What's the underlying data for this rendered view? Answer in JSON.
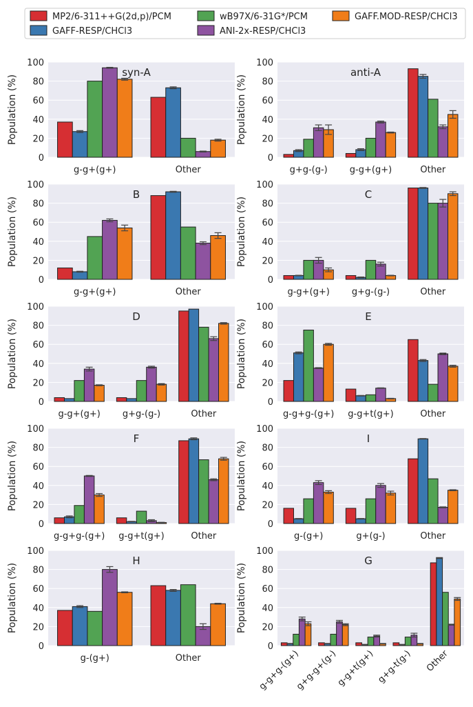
{
  "colors": {
    "mp2": "#d62f33",
    "gaff_resp": "#3a78b0",
    "wb97x": "#52a353",
    "ani2x": "#8e53a0",
    "gaff_mod": "#f07d19",
    "panel_bg": "#eaeaf2",
    "grid": "#ffffff"
  },
  "legend": {
    "entries": [
      "MP2/6-311++G(2d,p)/PCM",
      "GAFF-RESP/CHCl3",
      "wB97X/6-31G*/PCM",
      "ANI-2x-RESP/CHCl3",
      "GAFF.MOD-RESP/CHCl3"
    ]
  },
  "chart_data": [
    {
      "type": "bar",
      "title": "syn-A",
      "ylabel": "Population (%)",
      "ylim": [
        0,
        100
      ],
      "yticks": [
        0,
        20,
        40,
        60,
        80,
        100
      ],
      "categories": [
        "g-g+(g+)",
        "Other"
      ],
      "series": [
        {
          "name": "MP2/6-311++G(2d,p)/PCM",
          "values": [
            37,
            63
          ]
        },
        {
          "name": "GAFF-RESP/CHCl3",
          "values": [
            27,
            73
          ],
          "errors": [
            1,
            1
          ]
        },
        {
          "name": "wB97X/6-31G*/PCM",
          "values": [
            80,
            20
          ]
        },
        {
          "name": "ANI-2x-RESP/CHCl3",
          "values": [
            94,
            6
          ],
          "errors": [
            0.5,
            0.5
          ]
        },
        {
          "name": "GAFF.MOD-RESP/CHCl3",
          "values": [
            82,
            18
          ],
          "errors": [
            1,
            1
          ]
        }
      ]
    },
    {
      "type": "bar",
      "title": "anti-A",
      "ylabel": "Population (%)",
      "ylim": [
        0,
        100
      ],
      "yticks": [
        0,
        20,
        40,
        60,
        80,
        100
      ],
      "categories": [
        "g+g-(g-)",
        "g-g+(g+)",
        "Other"
      ],
      "series": [
        {
          "name": "MP2/6-311++G(2d,p)/PCM",
          "values": [
            3,
            4,
            93
          ]
        },
        {
          "name": "GAFF-RESP/CHCl3",
          "values": [
            7,
            8,
            85
          ],
          "errors": [
            1,
            1,
            2
          ]
        },
        {
          "name": "wB97X/6-31G*/PCM",
          "values": [
            19,
            20,
            61
          ]
        },
        {
          "name": "ANI-2x-RESP/CHCl3",
          "values": [
            31,
            37,
            32
          ],
          "errors": [
            3,
            1,
            2
          ]
        },
        {
          "name": "GAFF.MOD-RESP/CHCl3",
          "values": [
            29,
            26,
            45
          ],
          "errors": [
            5,
            0.5,
            4
          ]
        }
      ]
    },
    {
      "type": "bar",
      "title": "B",
      "ylabel": "Population (%)",
      "ylim": [
        0,
        100
      ],
      "yticks": [
        0,
        20,
        40,
        60,
        80,
        100
      ],
      "categories": [
        "g-g+(g+)",
        "Other"
      ],
      "series": [
        {
          "name": "MP2/6-311++G(2d,p)/PCM",
          "values": [
            12,
            88
          ]
        },
        {
          "name": "GAFF-RESP/CHCl3",
          "values": [
            8,
            92
          ],
          "errors": [
            0.5,
            0.5
          ]
        },
        {
          "name": "wB97X/6-31G*/PCM",
          "values": [
            45,
            55
          ]
        },
        {
          "name": "ANI-2x-RESP/CHCl3",
          "values": [
            62,
            38
          ],
          "errors": [
            1.5,
            1.5
          ]
        },
        {
          "name": "GAFF.MOD-RESP/CHCl3",
          "values": [
            54,
            46
          ],
          "errors": [
            3,
            3
          ]
        }
      ]
    },
    {
      "type": "bar",
      "title": "C",
      "ylabel": "Population (%)",
      "ylim": [
        0,
        100
      ],
      "yticks": [
        0,
        20,
        40,
        60,
        80,
        100
      ],
      "categories": [
        "g-g+(g+)",
        "g+g-(g-)",
        "Other"
      ],
      "series": [
        {
          "name": "MP2/6-311++G(2d,p)/PCM",
          "values": [
            4,
            4,
            96
          ]
        },
        {
          "name": "GAFF-RESP/CHCl3",
          "values": [
            4,
            2,
            96
          ],
          "errors": [
            0.3,
            0.5,
            0.5
          ]
        },
        {
          "name": "wB97X/6-31G*/PCM",
          "values": [
            20,
            20,
            80
          ]
        },
        {
          "name": "ANI-2x-RESP/CHCl3",
          "values": [
            20,
            16,
            80
          ],
          "errors": [
            3,
            2,
            4
          ]
        },
        {
          "name": "GAFF.MOD-RESP/CHCl3",
          "values": [
            10,
            4,
            90
          ],
          "errors": [
            2,
            0.3,
            2
          ]
        }
      ]
    },
    {
      "type": "bar",
      "title": "D",
      "ylabel": "Population (%)",
      "ylim": [
        0,
        100
      ],
      "yticks": [
        0,
        20,
        40,
        60,
        80,
        100
      ],
      "categories": [
        "g-g+(g+)",
        "g+g-(g-)",
        "Other"
      ],
      "series": [
        {
          "name": "MP2/6-311++G(2d,p)/PCM",
          "values": [
            4,
            4,
            95
          ]
        },
        {
          "name": "GAFF-RESP/CHCl3",
          "values": [
            3,
            3,
            97
          ]
        },
        {
          "name": "wB97X/6-31G*/PCM",
          "values": [
            22,
            22,
            78
          ]
        },
        {
          "name": "ANI-2x-RESP/CHCl3",
          "values": [
            34,
            36,
            66
          ],
          "errors": [
            2,
            1,
            2
          ]
        },
        {
          "name": "GAFF.MOD-RESP/CHCl3",
          "values": [
            17,
            18,
            82
          ],
          "errors": [
            0.5,
            0.8,
            0.8
          ]
        }
      ]
    },
    {
      "type": "bar",
      "title": "E",
      "ylabel": "Population (%)",
      "ylim": [
        0,
        100
      ],
      "yticks": [
        0,
        20,
        40,
        60,
        80,
        100
      ],
      "categories": [
        "g-g+g-(g+)",
        "g-g+t(g+)",
        "Other"
      ],
      "series": [
        {
          "name": "MP2/6-311++G(2d,p)/PCM",
          "values": [
            22,
            13,
            65
          ]
        },
        {
          "name": "GAFF-RESP/CHCl3",
          "values": [
            51,
            6,
            43
          ],
          "errors": [
            1,
            0.3,
            1
          ]
        },
        {
          "name": "wB97X/6-31G*/PCM",
          "values": [
            75,
            7,
            18
          ]
        },
        {
          "name": "ANI-2x-RESP/CHCl3",
          "values": [
            35,
            14,
            50
          ],
          "errors": [
            0.5,
            0.3,
            0.8
          ]
        },
        {
          "name": "GAFF.MOD-RESP/CHCl3",
          "values": [
            60,
            3,
            37
          ],
          "errors": [
            1,
            0.3,
            1
          ]
        }
      ]
    },
    {
      "type": "bar",
      "title": "F",
      "ylabel": "Population (%)",
      "ylim": [
        0,
        100
      ],
      "yticks": [
        0,
        20,
        40,
        60,
        80,
        100
      ],
      "categories": [
        "g-g+g-(g+)",
        "g-g+t(g+)",
        "Other"
      ],
      "series": [
        {
          "name": "MP2/6-311++G(2d,p)/PCM",
          "values": [
            6,
            6,
            87
          ]
        },
        {
          "name": "GAFF-RESP/CHCl3",
          "values": [
            7,
            2,
            89
          ],
          "errors": [
            1,
            0.3,
            1
          ]
        },
        {
          "name": "wB97X/6-31G*/PCM",
          "values": [
            19,
            13,
            67
          ]
        },
        {
          "name": "ANI-2x-RESP/CHCl3",
          "values": [
            50,
            3,
            46
          ],
          "errors": [
            0.5,
            1,
            1
          ]
        },
        {
          "name": "GAFF.MOD-RESP/CHCl3",
          "values": [
            30,
            1,
            68
          ],
          "errors": [
            1.5,
            0.3,
            1.5
          ]
        }
      ]
    },
    {
      "type": "bar",
      "title": "I",
      "ylabel": "Population (%)",
      "ylim": [
        0,
        100
      ],
      "yticks": [
        0,
        20,
        40,
        60,
        80,
        100
      ],
      "categories": [
        "g-(g+)",
        "g+(g-)",
        "Other"
      ],
      "series": [
        {
          "name": "MP2/6-311++G(2d,p)/PCM",
          "values": [
            16,
            16,
            68
          ]
        },
        {
          "name": "GAFF-RESP/CHCl3",
          "values": [
            5,
            5,
            89
          ],
          "errors": [
            0.3,
            0.3,
            0.3
          ]
        },
        {
          "name": "wB97X/6-31G*/PCM",
          "values": [
            26,
            26,
            47
          ]
        },
        {
          "name": "ANI-2x-RESP/CHCl3",
          "values": [
            43,
            40,
            17
          ],
          "errors": [
            2,
            2,
            0.5
          ]
        },
        {
          "name": "GAFF.MOD-RESP/CHCl3",
          "values": [
            33,
            32,
            35
          ],
          "errors": [
            1.5,
            2,
            0.5
          ]
        }
      ]
    },
    {
      "type": "bar",
      "title": "H",
      "ylabel": "Population (%)",
      "ylim": [
        0,
        100
      ],
      "yticks": [
        0,
        20,
        40,
        60,
        80,
        100
      ],
      "categories": [
        "g-(g+)",
        "Other"
      ],
      "series": [
        {
          "name": "MP2/6-311++G(2d,p)/PCM",
          "values": [
            37,
            63
          ]
        },
        {
          "name": "GAFF-RESP/CHCl3",
          "values": [
            41,
            58
          ],
          "errors": [
            1,
            1
          ]
        },
        {
          "name": "wB97X/6-31G*/PCM",
          "values": [
            36,
            64
          ]
        },
        {
          "name": "ANI-2x-RESP/CHCl3",
          "values": [
            80,
            20
          ],
          "errors": [
            3,
            3
          ]
        },
        {
          "name": "GAFF.MOD-RESP/CHCl3",
          "values": [
            56,
            44
          ],
          "errors": [
            0.5,
            0.5
          ]
        }
      ]
    },
    {
      "type": "bar",
      "title": "G",
      "ylabel": "Population (%)",
      "ylim": [
        0,
        100
      ],
      "yticks": [
        0,
        20,
        40,
        60,
        80,
        100
      ],
      "categories": [
        "g-g+g-(g+)",
        "g+g-g+(g-)",
        "g-g+t(g+)",
        "g+g-t(g-)",
        "Other"
      ],
      "series": [
        {
          "name": "MP2/6-311++G(2d,p)/PCM",
          "values": [
            3,
            3,
            3,
            3,
            87
          ]
        },
        {
          "name": "GAFF-RESP/CHCl3",
          "values": [
            2,
            2,
            1,
            1,
            92
          ],
          "errors": [
            0.3,
            0.3,
            0.3,
            0.3,
            0.5
          ]
        },
        {
          "name": "wB97X/6-31G*/PCM",
          "values": [
            12,
            12,
            9,
            9,
            56
          ]
        },
        {
          "name": "ANI-2x-RESP/CHCl3",
          "values": [
            28,
            25,
            10,
            11,
            22
          ],
          "errors": [
            2,
            1.5,
            1,
            2,
            0.5
          ]
        },
        {
          "name": "GAFF.MOD-RESP/CHCl3",
          "values": [
            23,
            22,
            2,
            2,
            49
          ],
          "errors": [
            2,
            1,
            0.3,
            0.3,
            1.5
          ]
        }
      ]
    }
  ]
}
